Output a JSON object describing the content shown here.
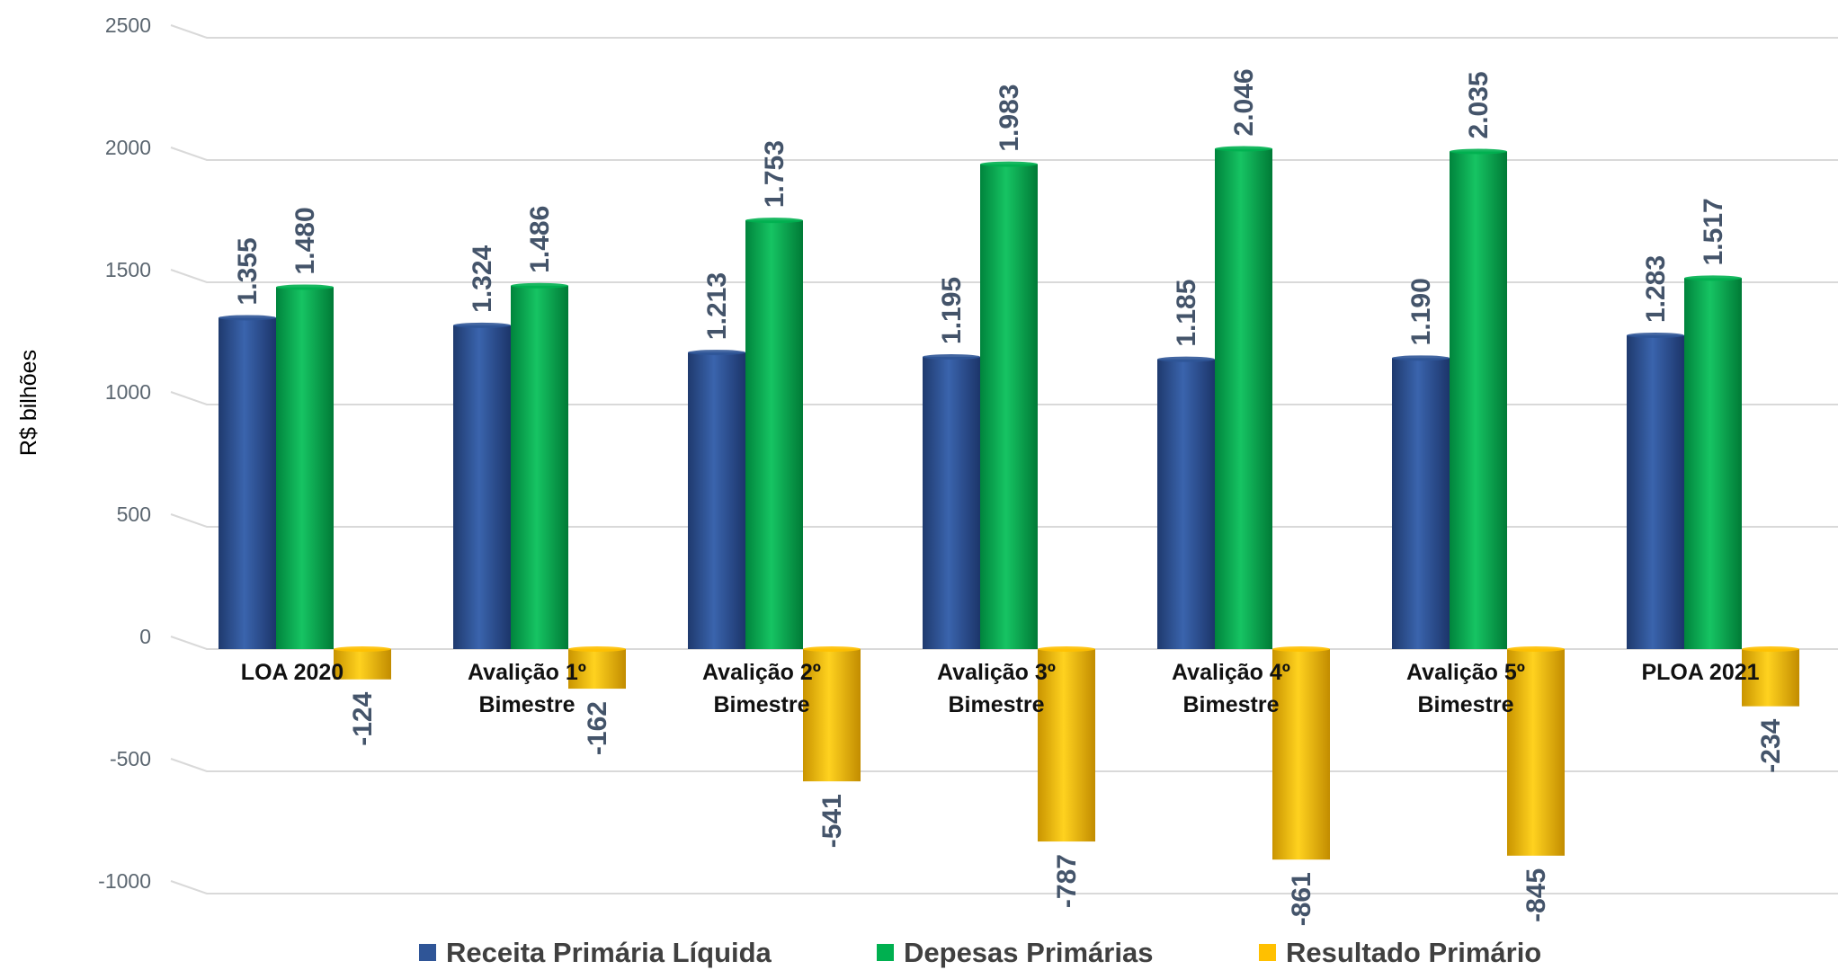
{
  "chart_data": {
    "type": "bar",
    "ylabel": "R$ bilhões",
    "xlabel": "",
    "ylim": [
      -1000,
      2500
    ],
    "yticks": [
      2500,
      2000,
      1500,
      1000,
      500,
      0,
      -500,
      -1000
    ],
    "grid": true,
    "legend_position": "bottom",
    "categories": [
      [
        "LOA 2020"
      ],
      [
        "Avalição 1º",
        "Bimestre"
      ],
      [
        "Avalição 2º",
        "Bimestre"
      ],
      [
        "Avalição 3º",
        "Bimestre"
      ],
      [
        "Avalição 4º",
        "Bimestre"
      ],
      [
        "Avalição 5º",
        "Bimestre"
      ],
      [
        "PLOA 2021"
      ]
    ],
    "series": [
      {
        "name": "Receita Primária Líquida",
        "color": "#2f5597",
        "values": [
          1355,
          1324,
          1213,
          1195,
          1185,
          1190,
          1283
        ],
        "labels": [
          "1.355",
          "1.324",
          "1.213",
          "1.195",
          "1.185",
          "1.190",
          "1.283"
        ]
      },
      {
        "name": "Depesas Primárias",
        "color": "#00b050",
        "values": [
          1480,
          1486,
          1753,
          1983,
          2046,
          2035,
          1517
        ],
        "labels": [
          "1.480",
          "1.486",
          "1.753",
          "1.983",
          "2.046",
          "2.035",
          "1.517"
        ]
      },
      {
        "name": "Resultado Primário",
        "color": "#ffc000",
        "values": [
          -124,
          -162,
          -541,
          -787,
          -861,
          -845,
          -234
        ],
        "labels": [
          "-124",
          "-162",
          "-541",
          "-787",
          "-861",
          "-845",
          "-234"
        ]
      }
    ]
  }
}
